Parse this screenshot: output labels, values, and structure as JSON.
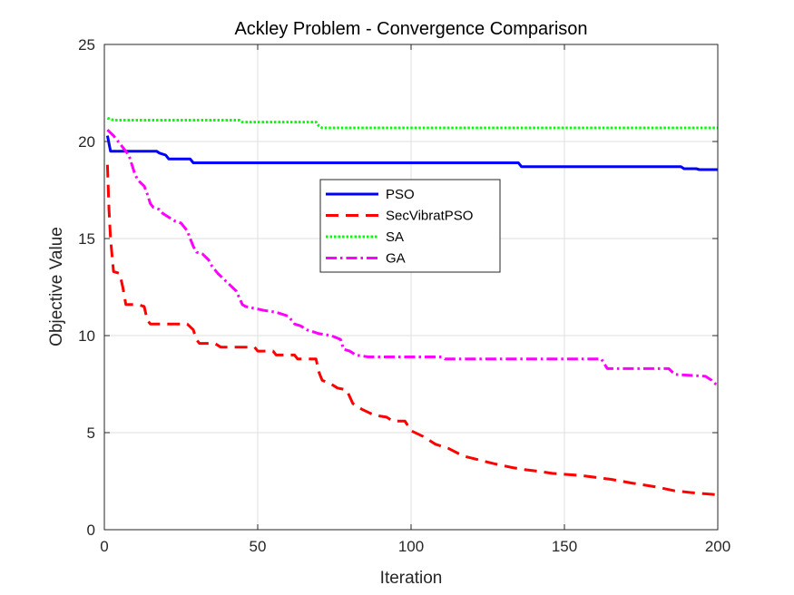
{
  "chart_data": {
    "type": "line",
    "title": "Ackley Problem - Convergence Comparison",
    "xlabel": "Iteration",
    "ylabel": "Objective Value",
    "xlim": [
      0,
      200
    ],
    "ylim": [
      0,
      25
    ],
    "xticks": [
      0,
      50,
      100,
      150,
      200
    ],
    "yticks": [
      0,
      5,
      10,
      15,
      20,
      25
    ],
    "grid": true,
    "legend_position": "center",
    "series": [
      {
        "name": "PSO",
        "color": "#0000ff",
        "style": "solid",
        "points": [
          [
            1,
            20.3
          ],
          [
            2,
            19.5
          ],
          [
            17,
            19.5
          ],
          [
            18,
            19.4
          ],
          [
            20,
            19.3
          ],
          [
            21,
            19.1
          ],
          [
            28,
            19.1
          ],
          [
            29,
            18.9
          ],
          [
            135,
            18.9
          ],
          [
            136,
            18.7
          ],
          [
            188,
            18.7
          ],
          [
            189,
            18.6
          ],
          [
            193,
            18.6
          ],
          [
            194,
            18.55
          ],
          [
            200,
            18.55
          ]
        ]
      },
      {
        "name": "SecVibratPSO",
        "color": "#ff0000",
        "style": "dashed",
        "points": [
          [
            1,
            18.8
          ],
          [
            1.5,
            16.5
          ],
          [
            2,
            15.0
          ],
          [
            3,
            13.3
          ],
          [
            5,
            13.2
          ],
          [
            6,
            12.5
          ],
          [
            7,
            11.6
          ],
          [
            11,
            11.6
          ],
          [
            13,
            11.5
          ],
          [
            14,
            10.8
          ],
          [
            15,
            10.6
          ],
          [
            27,
            10.6
          ],
          [
            29,
            10.3
          ],
          [
            30,
            9.8
          ],
          [
            31,
            9.6
          ],
          [
            36,
            9.6
          ],
          [
            38,
            9.4
          ],
          [
            49,
            9.4
          ],
          [
            50,
            9.2
          ],
          [
            55,
            9.2
          ],
          [
            56,
            9.0
          ],
          [
            62,
            9.0
          ],
          [
            63,
            8.8
          ],
          [
            69,
            8.8
          ],
          [
            70,
            8.1
          ],
          [
            71,
            7.7
          ],
          [
            74,
            7.5
          ],
          [
            76,
            7.3
          ],
          [
            79,
            7.2
          ],
          [
            81,
            6.5
          ],
          [
            84,
            6.2
          ],
          [
            88,
            5.9
          ],
          [
            92,
            5.8
          ],
          [
            94,
            5.6
          ],
          [
            98,
            5.6
          ],
          [
            100,
            5.1
          ],
          [
            104,
            4.8
          ],
          [
            106,
            4.6
          ],
          [
            108,
            4.4
          ],
          [
            112,
            4.2
          ],
          [
            117,
            3.8
          ],
          [
            122,
            3.6
          ],
          [
            127,
            3.4
          ],
          [
            133,
            3.2
          ],
          [
            137,
            3.1
          ],
          [
            142,
            3.0
          ],
          [
            146,
            2.9
          ],
          [
            155,
            2.8
          ],
          [
            165,
            2.6
          ],
          [
            172,
            2.4
          ],
          [
            180,
            2.2
          ],
          [
            186,
            2.0
          ],
          [
            192,
            1.9
          ],
          [
            200,
            1.8
          ]
        ]
      },
      {
        "name": "SA",
        "color": "#00ff00",
        "style": "dotted",
        "points": [
          [
            1,
            21.2
          ],
          [
            3,
            21.1
          ],
          [
            44,
            21.1
          ],
          [
            45,
            21.0
          ],
          [
            69,
            21.0
          ],
          [
            70,
            20.8
          ],
          [
            71,
            20.7
          ],
          [
            200,
            20.7
          ]
        ]
      },
      {
        "name": "GA",
        "color": "#ff00ff",
        "style": "dashdot",
        "points": [
          [
            1,
            20.6
          ],
          [
            3,
            20.3
          ],
          [
            4,
            20.1
          ],
          [
            6,
            19.7
          ],
          [
            8,
            19.3
          ],
          [
            9,
            18.8
          ],
          [
            10,
            18.3
          ],
          [
            11,
            18.0
          ],
          [
            13,
            17.7
          ],
          [
            14,
            17.3
          ],
          [
            15,
            16.8
          ],
          [
            16,
            16.6
          ],
          [
            18,
            16.5
          ],
          [
            19,
            16.3
          ],
          [
            21,
            16.1
          ],
          [
            23,
            15.9
          ],
          [
            25,
            15.8
          ],
          [
            27,
            15.4
          ],
          [
            28,
            15.0
          ],
          [
            29,
            14.6
          ],
          [
            30,
            14.3
          ],
          [
            32,
            14.2
          ],
          [
            34,
            13.9
          ],
          [
            35,
            13.6
          ],
          [
            37,
            13.2
          ],
          [
            39,
            12.9
          ],
          [
            41,
            12.6
          ],
          [
            43,
            12.3
          ],
          [
            45,
            11.6
          ],
          [
            46,
            11.5
          ],
          [
            49,
            11.4
          ],
          [
            52,
            11.3
          ],
          [
            56,
            11.2
          ],
          [
            60,
            11.0
          ],
          [
            62,
            10.6
          ],
          [
            64,
            10.5
          ],
          [
            66,
            10.3
          ],
          [
            68,
            10.2
          ],
          [
            70,
            10.1
          ],
          [
            74,
            10.0
          ],
          [
            77,
            9.8
          ],
          [
            78,
            9.3
          ],
          [
            80,
            9.2
          ],
          [
            82,
            9.0
          ],
          [
            86,
            8.9
          ],
          [
            90,
            8.9
          ],
          [
            110,
            8.9
          ],
          [
            111,
            8.8
          ],
          [
            162,
            8.8
          ],
          [
            164,
            8.3
          ],
          [
            184,
            8.3
          ],
          [
            186,
            8.0
          ],
          [
            196,
            7.9
          ],
          [
            198,
            7.7
          ],
          [
            200,
            7.4
          ]
        ]
      }
    ]
  }
}
